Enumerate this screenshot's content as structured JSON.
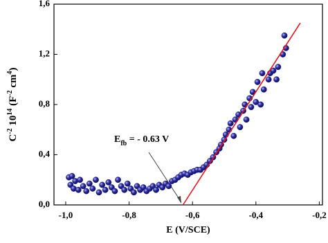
{
  "chart_data": {
    "type": "scatter",
    "xlabel": "E (V/SCE)",
    "ylabel": [
      {
        "text": "C"
      },
      {
        "text": "-2",
        "sup": true
      },
      {
        "text": " 10"
      },
      {
        "text": "14",
        "sup": true
      },
      {
        "text": " (F"
      },
      {
        "text": "-2",
        "sup": true
      },
      {
        "text": " cm"
      },
      {
        "text": "4",
        "sup": true
      },
      {
        "text": ")"
      }
    ],
    "xlim": [
      -1.037,
      -0.19
    ],
    "ylim": [
      0,
      1.6
    ],
    "xticks": [
      {
        "value": -1.0,
        "label": "-1,0"
      },
      {
        "value": -0.8,
        "label": "-0,8"
      },
      {
        "value": -0.6,
        "label": "-0,6"
      },
      {
        "value": -0.4,
        "label": "-0,4"
      },
      {
        "value": -0.2,
        "label": "-0,2"
      }
    ],
    "yticks": [
      {
        "value": 0,
        "label": "0,0"
      },
      {
        "value": 0.4,
        "label": "0,4"
      },
      {
        "value": 0.8,
        "label": "0,8"
      },
      {
        "value": 1.2,
        "label": "1,2"
      },
      {
        "value": 1.6,
        "label": "1,6"
      }
    ],
    "annotation": {
      "text": "E",
      "subscript": "fb",
      "rest": " = - 0.63 V"
    },
    "fit_line": {
      "x": [
        -0.63,
        -0.26
      ],
      "y": [
        0,
        1.45
      ],
      "color": "#e8141c"
    },
    "series": [
      {
        "color": "#1c1c8c",
        "x": [
          -0.99,
          -0.985,
          -0.98,
          -0.975,
          -0.97,
          -0.96,
          -0.955,
          -0.945,
          -0.935,
          -0.925,
          -0.915,
          -0.905,
          -0.895,
          -0.885,
          -0.875,
          -0.865,
          -0.855,
          -0.845,
          -0.835,
          -0.825,
          -0.815,
          -0.805,
          -0.795,
          -0.785,
          -0.775,
          -0.765,
          -0.755,
          -0.745,
          -0.735,
          -0.725,
          -0.715,
          -0.705,
          -0.695,
          -0.685,
          -0.675,
          -0.665,
          -0.655,
          -0.645,
          -0.635,
          -0.625,
          -0.615,
          -0.605,
          -0.595,
          -0.585,
          -0.575,
          -0.565,
          -0.555,
          -0.545,
          -0.535,
          -0.525,
          -0.515,
          -0.51,
          -0.5,
          -0.495,
          -0.485,
          -0.48,
          -0.47,
          -0.465,
          -0.455,
          -0.45,
          -0.44,
          -0.435,
          -0.43,
          -0.42,
          -0.415,
          -0.41,
          -0.4,
          -0.395,
          -0.385,
          -0.38,
          -0.375,
          -0.36,
          -0.355,
          -0.345,
          -0.335,
          -0.33,
          -0.315,
          -0.31,
          -0.305
        ],
        "values": [
          0.22,
          0.16,
          0.23,
          0.13,
          0.19,
          0.12,
          0.2,
          0.15,
          0.11,
          0.17,
          0.13,
          0.2,
          0.1,
          0.16,
          0.12,
          0.18,
          0.14,
          0.11,
          0.2,
          0.15,
          0.12,
          0.17,
          0.13,
          0.1,
          0.15,
          0.12,
          0.14,
          0.11,
          0.13,
          0.15,
          0.12,
          0.16,
          0.14,
          0.17,
          0.15,
          0.19,
          0.2,
          0.22,
          0.24,
          0.25,
          0.24,
          0.26,
          0.27,
          0.28,
          0.28,
          0.3,
          0.32,
          0.35,
          0.38,
          0.42,
          0.45,
          0.48,
          0.52,
          0.56,
          0.6,
          0.65,
          0.55,
          0.68,
          0.72,
          0.62,
          0.75,
          0.8,
          0.68,
          0.85,
          0.78,
          0.9,
          0.82,
          0.98,
          0.8,
          1.05,
          0.92,
          1.0,
          1.05,
          1.07,
          1.0,
          1.1,
          1.2,
          1.35,
          1.25
        ]
      }
    ]
  }
}
